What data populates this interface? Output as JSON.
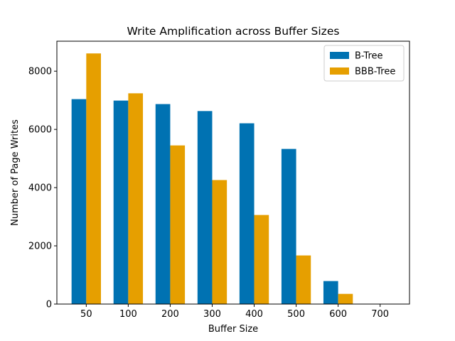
{
  "chart_data": {
    "type": "bar",
    "title": "Write Amplification across Buffer Sizes",
    "xlabel": "Buffer Size",
    "ylabel": "Number of Page Writes",
    "categories": [
      "50",
      "100",
      "200",
      "300",
      "400",
      "500",
      "600",
      "700"
    ],
    "series": [
      {
        "name": "B-Tree",
        "color": "#0072b2",
        "values": [
          7040,
          6990,
          6870,
          6630,
          6210,
          5330,
          790,
          0
        ]
      },
      {
        "name": "BBB-Tree",
        "color": "#e69f00",
        "values": [
          8610,
          7240,
          5450,
          4260,
          3060,
          1670,
          350,
          0
        ]
      }
    ],
    "ylim": [
      0,
      9030
    ],
    "yticks": [
      0,
      2000,
      4000,
      6000,
      8000
    ],
    "legend_position": "top-right",
    "grid": false
  }
}
